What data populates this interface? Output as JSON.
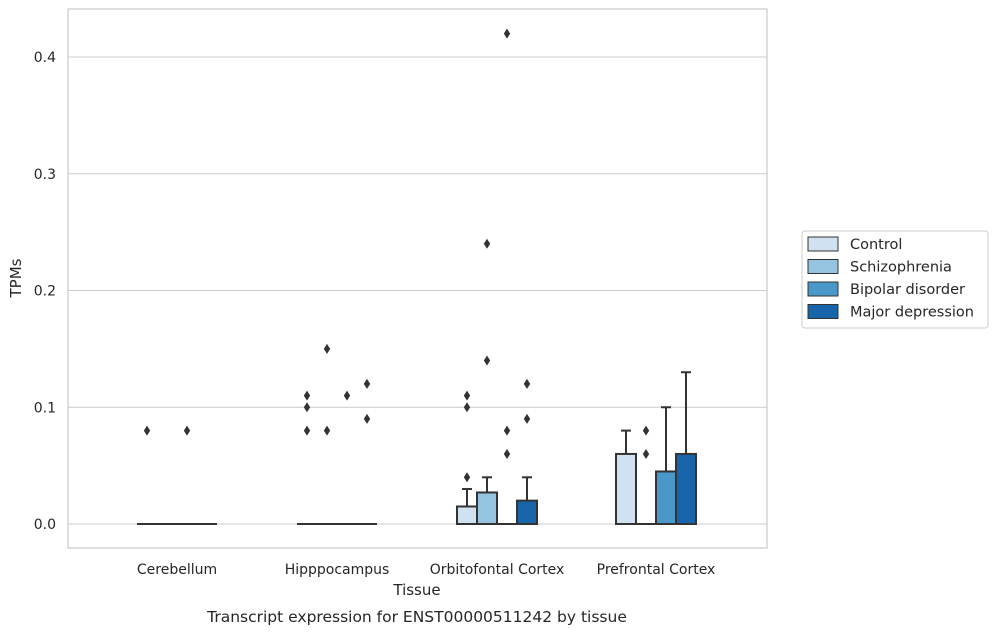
{
  "caption": "Transcript expression for ENST00000511242 by tissue",
  "colors": {
    "Control": "#d0e1f2",
    "Schizophrenia": "#94c4df",
    "Bipolar disorder": "#4a98c9",
    "Major depression": "#1764ab",
    "edge": "#333333",
    "grid": "#cccccc"
  },
  "chart_data": {
    "type": "bar",
    "title": "",
    "xlabel": "Tissue",
    "ylabel": "TPMs",
    "ylim": [
      -0.02,
      0.44
    ],
    "yticks": [
      0.0,
      0.1,
      0.2,
      0.3,
      0.4
    ],
    "ytick_labels": [
      "0.0",
      "0.1",
      "0.2",
      "0.3",
      "0.4"
    ],
    "grid": "horizontal",
    "legend_position": "right",
    "categories": [
      "Cerebellum",
      "Hipppocampus",
      "Orbitofontal Cortex",
      "Prefrontal Cortex"
    ],
    "series": [
      {
        "name": "Control",
        "values": [
          0.0,
          0.0,
          0.015,
          0.06
        ],
        "whisker_high": [
          null,
          null,
          0.03,
          0.08
        ],
        "outliers": [
          [
            0.08
          ],
          [
            0.08,
            0.1,
            0.11
          ],
          [
            0.04,
            0.1,
            0.11
          ],
          []
        ]
      },
      {
        "name": "Schizophrenia",
        "values": [
          0.0,
          0.0,
          0.027,
          0.0
        ],
        "whisker_high": [
          null,
          null,
          0.04,
          null
        ],
        "outliers": [
          [],
          [
            0.08,
            0.15
          ],
          [
            0.14,
            0.24
          ],
          [
            0.06,
            0.08
          ]
        ]
      },
      {
        "name": "Bipolar disorder",
        "values": [
          0.0,
          0.0,
          0.0,
          0.045
        ],
        "whisker_high": [
          null,
          null,
          null,
          0.1
        ],
        "outliers": [
          [
            0.08
          ],
          [
            0.11
          ],
          [
            0.06,
            0.08,
            0.42
          ],
          []
        ]
      },
      {
        "name": "Major depression",
        "values": [
          0.0,
          0.0,
          0.02,
          0.06
        ],
        "whisker_high": [
          null,
          null,
          0.04,
          0.13
        ],
        "outliers": [
          [],
          [
            0.09,
            0.12
          ],
          [
            0.09,
            0.12
          ],
          []
        ]
      }
    ]
  }
}
